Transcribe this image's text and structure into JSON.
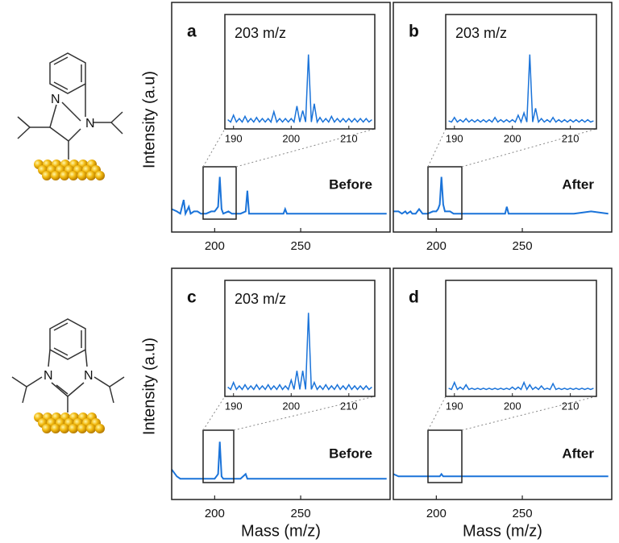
{
  "molecules": {
    "top": [
      "N",
      "N"
    ],
    "bottom": [
      "N",
      "N"
    ]
  },
  "chart_data": [
    {
      "type": "line",
      "label": "a",
      "annotation": "Before",
      "ylabel": "Intensity (a.u)",
      "color": "#1a73d9",
      "x": [
        175,
        178,
        180,
        182,
        183,
        185,
        186,
        188,
        190,
        192,
        195,
        198,
        200,
        201,
        202,
        203,
        204,
        205,
        208,
        210,
        215,
        218,
        219,
        220,
        225,
        230,
        235,
        240,
        241,
        242,
        245,
        250,
        260,
        270,
        280,
        290,
        300
      ],
      "values": [
        10,
        9,
        8,
        14,
        8,
        11,
        8,
        9,
        9,
        8,
        8,
        9,
        9,
        10,
        11,
        24,
        10,
        8,
        9,
        8,
        8,
        9,
        18,
        8,
        8,
        8,
        8,
        8,
        10,
        8,
        8,
        8,
        8,
        8,
        8,
        8,
        8
      ],
      "xlim": [
        175,
        302
      ],
      "ylim": [
        0,
        100
      ],
      "xticks": [
        200,
        250
      ],
      "inset": {
        "title": "203 m/z",
        "x": [
          189,
          189.5,
          190,
          190.5,
          191,
          191.5,
          192,
          192.5,
          193,
          193.5,
          194,
          194.5,
          195,
          195.5,
          196,
          196.5,
          197,
          197.5,
          198,
          198.5,
          199,
          199.5,
          200,
          200.5,
          201,
          201.5,
          202,
          202.5,
          203,
          203.5,
          204,
          204.5,
          205,
          205.5,
          206,
          206.5,
          207,
          207.5,
          208,
          208.5,
          209,
          209.5,
          210,
          210.5,
          211,
          211.5,
          212,
          212.5,
          213,
          213.5,
          214
        ],
        "values": [
          8,
          6,
          12,
          6,
          9,
          6,
          11,
          6,
          9,
          6,
          10,
          6,
          9,
          6,
          9,
          6,
          15,
          6,
          9,
          6,
          9,
          6,
          9,
          6,
          20,
          6,
          16,
          6,
          65,
          6,
          22,
          6,
          10,
          6,
          9,
          6,
          11,
          6,
          9,
          6,
          9,
          6,
          9,
          6,
          9,
          6,
          9,
          6,
          9,
          6,
          8
        ],
        "xlim": [
          188.5,
          214.5
        ],
        "ylim": [
          0,
          100
        ],
        "xticks": [
          190,
          200,
          210
        ]
      }
    },
    {
      "type": "line",
      "label": "b",
      "annotation": "After",
      "color": "#1a73d9",
      "x": [
        175,
        178,
        180,
        182,
        183,
        185,
        186,
        188,
        190,
        192,
        195,
        198,
        200,
        201,
        202,
        203,
        204,
        205,
        208,
        210,
        215,
        218,
        219,
        220,
        225,
        230,
        235,
        240,
        241,
        242,
        245,
        250,
        260,
        270,
        280,
        290,
        300
      ],
      "values": [
        9,
        9,
        8,
        9,
        8,
        9,
        8,
        8,
        10,
        8,
        8,
        9,
        9,
        10,
        12,
        24,
        12,
        9,
        9,
        8,
        8,
        8,
        8,
        8,
        8,
        8,
        8,
        8,
        11,
        8,
        8,
        8,
        8,
        8,
        8,
        9,
        8
      ],
      "xlim": [
        175,
        302
      ],
      "ylim": [
        0,
        100
      ],
      "xticks": [
        200,
        250
      ],
      "inset": {
        "title": "203 m/z",
        "x": [
          189,
          189.5,
          190,
          190.5,
          191,
          191.5,
          192,
          192.5,
          193,
          193.5,
          194,
          194.5,
          195,
          195.5,
          196,
          196.5,
          197,
          197.5,
          198,
          198.5,
          199,
          199.5,
          200,
          200.5,
          201,
          201.5,
          202,
          202.5,
          203,
          203.5,
          204,
          204.5,
          205,
          205.5,
          206,
          206.5,
          207,
          207.5,
          208,
          208.5,
          209,
          209.5,
          210,
          210.5,
          211,
          211.5,
          212,
          212.5,
          213,
          213.5,
          214
        ],
        "values": [
          7,
          6,
          10,
          6,
          8,
          6,
          9,
          6,
          8,
          6,
          8,
          6,
          8,
          6,
          8,
          6,
          10,
          6,
          8,
          6,
          8,
          6,
          8,
          6,
          12,
          6,
          14,
          6,
          65,
          6,
          18,
          6,
          9,
          6,
          8,
          6,
          10,
          6,
          8,
          6,
          8,
          6,
          8,
          6,
          8,
          6,
          8,
          6,
          8,
          6,
          7
        ],
        "xlim": [
          188.5,
          214.5
        ],
        "ylim": [
          0,
          100
        ],
        "xticks": [
          190,
          200,
          210
        ]
      }
    },
    {
      "type": "line",
      "label": "c",
      "annotation": "Before",
      "ylabel": "Intensity (a.u)",
      "xlabel": "Mass (m/z)",
      "color": "#1a73d9",
      "x": [
        175,
        178,
        180,
        182,
        183,
        185,
        186,
        188,
        190,
        192,
        195,
        198,
        200,
        201,
        202,
        203,
        204,
        205,
        208,
        210,
        215,
        218,
        219,
        220,
        225,
        230,
        235,
        240,
        241,
        242,
        245,
        250,
        260,
        270,
        280,
        290,
        300
      ],
      "values": [
        13,
        10,
        9,
        9,
        9,
        9,
        9,
        9,
        9,
        9,
        9,
        9,
        9,
        10,
        11,
        25,
        10,
        9,
        9,
        9,
        9,
        11,
        9,
        9,
        9,
        9,
        9,
        9,
        9,
        9,
        9,
        9,
        9,
        9,
        9,
        9,
        9
      ],
      "xlim": [
        175,
        302
      ],
      "ylim": [
        0,
        100
      ],
      "xticks": [
        200,
        250
      ],
      "inset": {
        "title": "203 m/z",
        "x": [
          189,
          189.5,
          190,
          190.5,
          191,
          191.5,
          192,
          192.5,
          193,
          193.5,
          194,
          194.5,
          195,
          195.5,
          196,
          196.5,
          197,
          197.5,
          198,
          198.5,
          199,
          199.5,
          200,
          200.5,
          201,
          201.5,
          202,
          202.5,
          203,
          203.5,
          204,
          204.5,
          205,
          205.5,
          206,
          206.5,
          207,
          207.5,
          208,
          208.5,
          209,
          209.5,
          210,
          210.5,
          211,
          211.5,
          212,
          212.5,
          213,
          213.5,
          214
        ],
        "values": [
          8,
          6,
          12,
          6,
          9,
          6,
          10,
          6,
          9,
          6,
          10,
          6,
          9,
          6,
          10,
          6,
          9,
          6,
          10,
          6,
          9,
          6,
          14,
          6,
          22,
          6,
          22,
          6,
          72,
          6,
          12,
          6,
          9,
          6,
          10,
          6,
          9,
          6,
          10,
          6,
          9,
          6,
          10,
          6,
          9,
          6,
          9,
          6,
          9,
          6,
          8
        ],
        "xlim": [
          188.5,
          214.5
        ],
        "ylim": [
          0,
          100
        ],
        "xticks": [
          190,
          200,
          210
        ]
      }
    },
    {
      "type": "line",
      "label": "d",
      "annotation": "After",
      "xlabel": "Mass (m/z)",
      "color": "#1a73d9",
      "x": [
        175,
        178,
        180,
        182,
        183,
        185,
        186,
        188,
        190,
        192,
        195,
        198,
        200,
        201,
        202,
        203,
        204,
        205,
        208,
        210,
        215,
        218,
        219,
        220,
        225,
        230,
        235,
        240,
        241,
        242,
        245,
        250,
        260,
        270,
        280,
        290,
        300
      ],
      "values": [
        11,
        10,
        10,
        10,
        10,
        10,
        10,
        10,
        10,
        10,
        10,
        10,
        10,
        10,
        10,
        11,
        10,
        10,
        10,
        10,
        10,
        10,
        10,
        10,
        10,
        10,
        10,
        10,
        10,
        10,
        10,
        10,
        10,
        10,
        10,
        10,
        10
      ],
      "xlim": [
        175,
        302
      ],
      "ylim": [
        0,
        100
      ],
      "xticks": [
        200,
        250
      ],
      "inset": {
        "x": [
          189,
          189.5,
          190,
          190.5,
          191,
          191.5,
          192,
          192.5,
          193,
          193.5,
          194,
          194.5,
          195,
          195.5,
          196,
          196.5,
          197,
          197.5,
          198,
          198.5,
          199,
          199.5,
          200,
          200.5,
          201,
          201.5,
          202,
          202.5,
          203,
          203.5,
          204,
          204.5,
          205,
          205.5,
          206,
          206.5,
          207,
          207.5,
          208,
          208.5,
          209,
          209.5,
          210,
          210.5,
          211,
          211.5,
          212,
          212.5,
          213,
          213.5,
          214
        ],
        "values": [
          7,
          6,
          12,
          6,
          8,
          6,
          10,
          6,
          7,
          6,
          7,
          6,
          7,
          6,
          7,
          6,
          7,
          6,
          7,
          6,
          7,
          6,
          8,
          6,
          8,
          6,
          12,
          6,
          10,
          6,
          8,
          6,
          9,
          6,
          7,
          6,
          11,
          6,
          7,
          6,
          7,
          6,
          7,
          6,
          7,
          6,
          7,
          6,
          7,
          6,
          7
        ],
        "xlim": [
          188.5,
          214.5
        ],
        "ylim": [
          0,
          100
        ],
        "xticks": [
          190,
          200,
          210
        ]
      }
    }
  ]
}
